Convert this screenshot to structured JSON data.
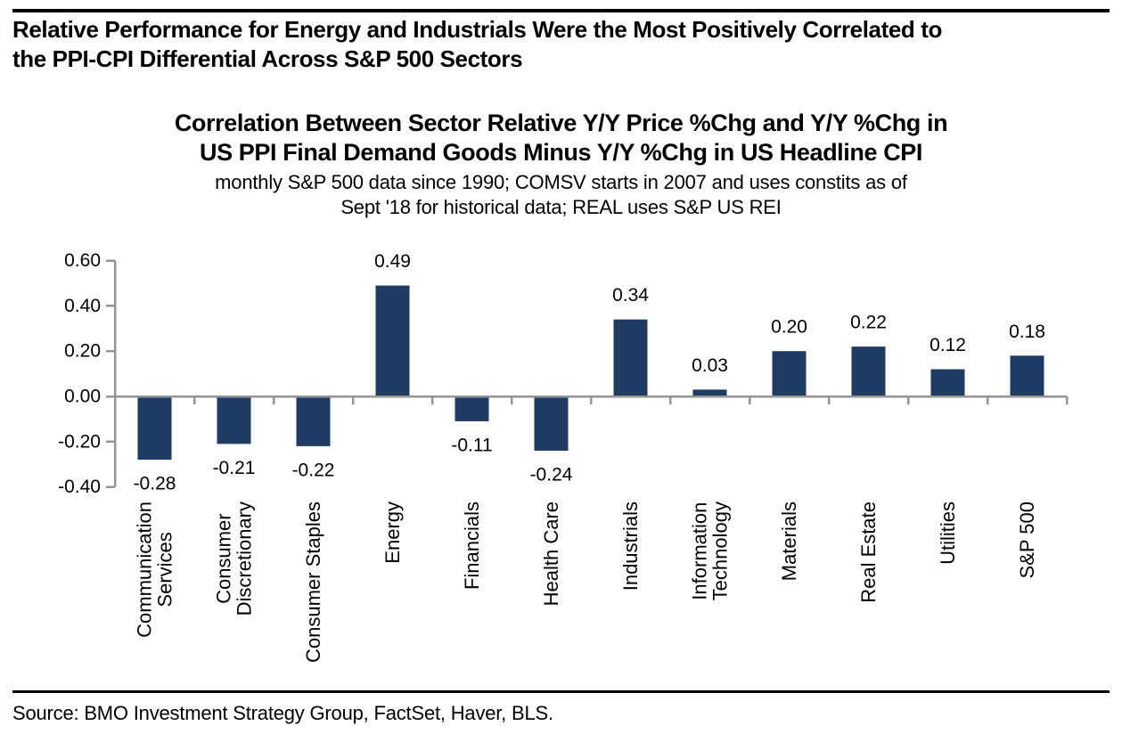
{
  "header": {
    "line1": "Relative Performance for Energy and Industrials Were the Most Positively Correlated to",
    "line2": "the PPI-CPI Differential Across S&P 500 Sectors"
  },
  "source": {
    "text": "Source: BMO Investment Strategy Group, FactSet, Haver, BLS."
  },
  "chart_data": {
    "type": "bar",
    "title": "Correlation Between Sector Relative Y/Y Price %Chg and Y/Y %Chg in US PPI Final Demand Goods Minus Y/Y %Chg in US Headline CPI",
    "title_lines": [
      "Correlation Between Sector Relative Y/Y Price %Chg and Y/Y %Chg in",
      "US PPI Final Demand Goods Minus Y/Y %Chg in US Headline CPI"
    ],
    "subtitle": "monthly S&P 500 data since 1990; COMSV starts in 2007 and uses  constits as of Sept '18 for historical data; REAL uses S&P US REI",
    "subtitle_lines": [
      "monthly S&P 500 data since 1990; COMSV starts in 2007 and uses  constits as of",
      "Sept '18 for historical data; REAL uses S&P US REI"
    ],
    "categories": [
      "Communication Services",
      "Consumer Discretionary",
      "Consumer Staples",
      "Energy",
      "Financials",
      "Health Care",
      "Industrials",
      "Information Technology",
      "Materials",
      "Real Estate",
      "Utilities",
      "S&P 500"
    ],
    "category_label_lines": [
      [
        "Communication",
        "Services"
      ],
      [
        "Consumer",
        "Discretionary"
      ],
      [
        "Consumer Staples"
      ],
      [
        "Energy"
      ],
      [
        "Financials"
      ],
      [
        "Health Care"
      ],
      [
        "Industrials"
      ],
      [
        "Information",
        "Technology"
      ],
      [
        "Materials"
      ],
      [
        "Real Estate"
      ],
      [
        "Utilities"
      ],
      [
        "S&P 500"
      ]
    ],
    "values": [
      -0.28,
      -0.21,
      -0.22,
      0.49,
      -0.11,
      -0.24,
      0.34,
      0.03,
      0.2,
      0.22,
      0.12,
      0.18
    ],
    "value_labels": [
      "-0.28",
      "-0.21",
      "-0.22",
      "0.49",
      "-0.11",
      "-0.24",
      "0.34",
      "0.03",
      "0.20",
      "0.22",
      "0.12",
      "0.18"
    ],
    "y_tick_labels": [
      "0.60",
      "0.40",
      "0.20",
      "0.00",
      "-0.20",
      "-0.40"
    ],
    "ylim": [
      -0.4,
      0.6
    ],
    "grid": false,
    "legend": false,
    "bar_color": "#1F3B63",
    "axis_color": "#949494",
    "text_color": "#000000"
  }
}
